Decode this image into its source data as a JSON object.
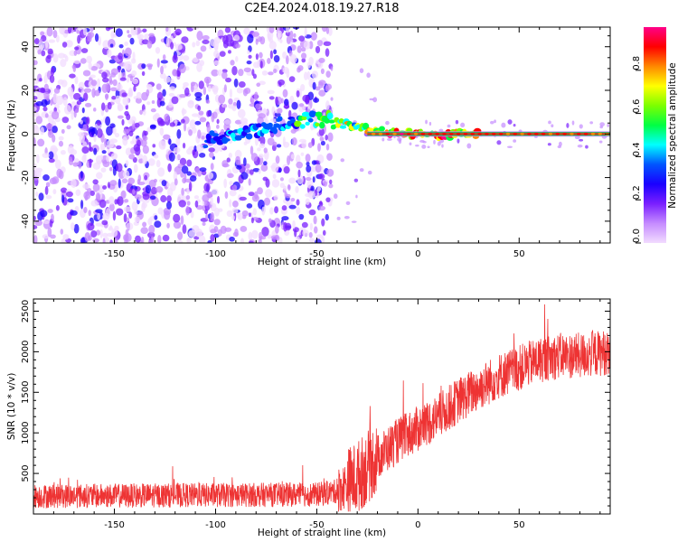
{
  "title": "C2E4.2024.018.19.27.R18",
  "chart_data": [
    {
      "type": "heatmap",
      "title": "C2E4.2024.018.19.27.R18",
      "xlabel": "Height of straight line (km)",
      "ylabel": "Frequency (Hz)",
      "xlim": [
        -190,
        95
      ],
      "ylim": [
        -50,
        49
      ],
      "x_ticks": [
        -150,
        -100,
        -50,
        0,
        50
      ],
      "x_tick_labels": [
        "-150",
        "-100",
        "-50",
        "0",
        "50"
      ],
      "y_ticks": [
        -40,
        -20,
        0,
        20,
        40
      ],
      "y_tick_labels": [
        "-40",
        "-20",
        "0",
        "20",
        "40"
      ],
      "colorbar": {
        "label": "Normalized spectral amplitude",
        "range": [
          0,
          1
        ],
        "ticks": [
          0.0,
          0.2,
          0.4,
          0.6,
          0.8
        ],
        "tick_labels": [
          "0.0",
          "0.2",
          "0.4",
          "0.6",
          "0.8"
        ],
        "colormap": [
          "#f2dcff",
          "#c58bff",
          "#7a1fff",
          "#1a00ff",
          "#0055ff",
          "#00ffff",
          "#00ff44",
          "#7cff00",
          "#ffff00",
          "#ff8800",
          "#ff0000",
          "#ff0088"
        ]
      },
      "noise_region_x": [
        -190,
        -43
      ],
      "sparse_region_x": [
        -43,
        95
      ],
      "ridge": [
        [
          -105,
          -3
        ],
        [
          -90,
          -1
        ],
        [
          -75,
          3
        ],
        [
          -60,
          6
        ],
        [
          -45,
          7
        ],
        [
          -35,
          4
        ],
        [
          -25,
          2
        ],
        [
          -10,
          0
        ],
        [
          0,
          0
        ],
        [
          10,
          -1
        ],
        [
          20,
          0
        ],
        [
          30,
          0
        ],
        [
          60,
          0
        ],
        [
          95,
          0
        ]
      ]
    },
    {
      "type": "line",
      "xlabel": "Height of straight line (km)",
      "ylabel": "SNR (10 * v/v)",
      "xlim": [
        -190,
        95
      ],
      "ylim": [
        0,
        2650
      ],
      "x_ticks": [
        -150,
        -100,
        -50,
        0,
        50
      ],
      "x_tick_labels": [
        "-150",
        "-100",
        "-50",
        "0",
        "50"
      ],
      "y_ticks": [
        500,
        1000,
        1500,
        2000,
        2500
      ],
      "y_tick_labels": [
        "500",
        "1000",
        "1500",
        "2000",
        "2500"
      ],
      "series_color": "#ee3333",
      "trend": [
        [
          -190,
          220
        ],
        [
          -120,
          230
        ],
        [
          -50,
          240
        ],
        [
          -40,
          280
        ],
        [
          -30,
          450
        ],
        [
          -20,
          700
        ],
        [
          -10,
          900
        ],
        [
          0,
          1050
        ],
        [
          10,
          1200
        ],
        [
          20,
          1400
        ],
        [
          30,
          1550
        ],
        [
          40,
          1700
        ],
        [
          50,
          1800
        ],
        [
          60,
          1900
        ],
        [
          70,
          1950
        ],
        [
          80,
          1950
        ],
        [
          95,
          2000
        ]
      ],
      "noise_amplitude": 150
    }
  ]
}
